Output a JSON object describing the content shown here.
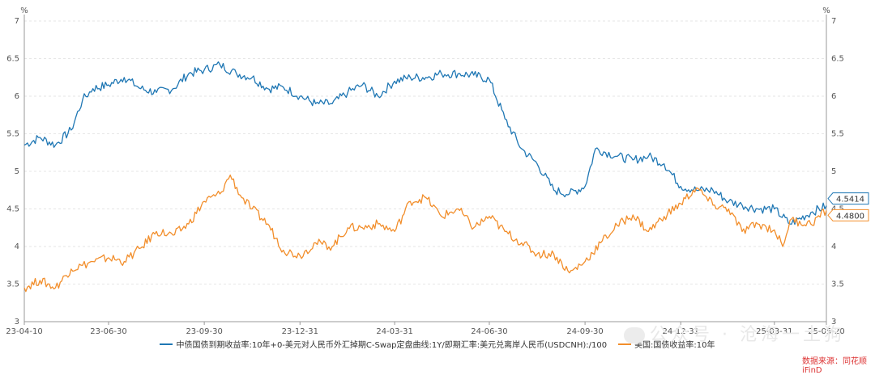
{
  "chart_data": {
    "type": "line",
    "y_unit_left": "%",
    "y_unit_right": "%",
    "ylim": [
      3,
      7
    ],
    "yticks": [
      "3",
      "3.5",
      "4",
      "4.5",
      "5",
      "5.5",
      "6",
      "6.5",
      "7"
    ],
    "xticks": [
      "23-04-10",
      "23-06-30",
      "23-09-30",
      "23-12-31",
      "24-03-31",
      "24-06-30",
      "24-09-30",
      "24-12-31",
      "25-03-31",
      "25-05-20"
    ],
    "grid": true,
    "legend_position": "bottom",
    "series": [
      {
        "name": "中债国债到期收益率:10年+0-美元对人民币外汇掉期C-Swap定盘曲线:1Y/即期汇率:美元兑离岸人民币(USDCNH):/100",
        "color": "#1f77b4",
        "last_value_label": "4.5414",
        "points": [
          [
            "23-04-10",
            5.35
          ],
          [
            "23-04-25",
            5.45
          ],
          [
            "23-05-10",
            5.35
          ],
          [
            "23-05-25",
            5.55
          ],
          [
            "23-06-05",
            5.95
          ],
          [
            "23-06-15",
            6.1
          ],
          [
            "23-06-30",
            6.15
          ],
          [
            "23-07-15",
            6.25
          ],
          [
            "23-07-31",
            6.1
          ],
          [
            "23-08-15",
            6.05
          ],
          [
            "23-08-31",
            6.1
          ],
          [
            "23-09-15",
            6.3
          ],
          [
            "23-09-30",
            6.35
          ],
          [
            "23-10-15",
            6.42
          ],
          [
            "23-10-31",
            6.3
          ],
          [
            "23-11-15",
            6.25
          ],
          [
            "23-11-30",
            6.1
          ],
          [
            "23-12-15",
            6.12
          ],
          [
            "23-12-31",
            6.0
          ],
          [
            "24-01-15",
            5.9
          ],
          [
            "24-01-31",
            5.9
          ],
          [
            "24-02-15",
            6.05
          ],
          [
            "24-02-29",
            6.15
          ],
          [
            "24-03-15",
            6.0
          ],
          [
            "24-03-31",
            6.2
          ],
          [
            "24-04-15",
            6.25
          ],
          [
            "24-04-30",
            6.25
          ],
          [
            "24-05-15",
            6.3
          ],
          [
            "24-05-31",
            6.3
          ],
          [
            "24-06-15",
            6.28
          ],
          [
            "24-06-30",
            6.22
          ],
          [
            "24-07-15",
            5.7
          ],
          [
            "24-07-31",
            5.3
          ],
          [
            "24-08-15",
            5.1
          ],
          [
            "24-08-31",
            4.75
          ],
          [
            "24-09-15",
            4.7
          ],
          [
            "24-09-30",
            4.8
          ],
          [
            "24-10-10",
            5.3
          ],
          [
            "24-10-31",
            5.2
          ],
          [
            "24-11-15",
            5.15
          ],
          [
            "24-11-30",
            5.2
          ],
          [
            "24-12-15",
            5.1
          ],
          [
            "24-12-31",
            4.8
          ],
          [
            "25-01-15",
            4.75
          ],
          [
            "25-01-31",
            4.75
          ],
          [
            "25-02-15",
            4.6
          ],
          [
            "25-02-28",
            4.55
          ],
          [
            "25-03-15",
            4.5
          ],
          [
            "25-03-31",
            4.5
          ],
          [
            "25-04-15",
            4.3
          ],
          [
            "25-05-05",
            4.45
          ],
          [
            "25-05-20",
            4.5414
          ]
        ]
      },
      {
        "name": "美国:国债收益率:10年",
        "color": "#f28e2b",
        "last_value_label": "4.4800",
        "points": [
          [
            "23-04-10",
            3.45
          ],
          [
            "23-04-25",
            3.55
          ],
          [
            "23-05-10",
            3.45
          ],
          [
            "23-05-25",
            3.7
          ],
          [
            "23-06-05",
            3.75
          ],
          [
            "23-06-15",
            3.8
          ],
          [
            "23-06-30",
            3.85
          ],
          [
            "23-07-15",
            3.8
          ],
          [
            "23-07-31",
            3.98
          ],
          [
            "23-08-15",
            4.2
          ],
          [
            "23-08-31",
            4.15
          ],
          [
            "23-09-15",
            4.3
          ],
          [
            "23-09-30",
            4.6
          ],
          [
            "23-10-15",
            4.7
          ],
          [
            "23-10-25",
            4.95
          ],
          [
            "23-11-05",
            4.65
          ],
          [
            "23-11-15",
            4.5
          ],
          [
            "23-11-30",
            4.3
          ],
          [
            "23-12-15",
            3.95
          ],
          [
            "23-12-31",
            3.88
          ],
          [
            "24-01-15",
            4.05
          ],
          [
            "24-01-31",
            4.0
          ],
          [
            "24-02-15",
            4.25
          ],
          [
            "24-02-29",
            4.25
          ],
          [
            "24-03-15",
            4.3
          ],
          [
            "24-03-31",
            4.2
          ],
          [
            "24-04-15",
            4.6
          ],
          [
            "24-04-30",
            4.65
          ],
          [
            "24-05-15",
            4.4
          ],
          [
            "24-05-31",
            4.5
          ],
          [
            "24-06-15",
            4.25
          ],
          [
            "24-06-30",
            4.4
          ],
          [
            "24-07-15",
            4.2
          ],
          [
            "24-07-31",
            4.05
          ],
          [
            "24-08-15",
            3.9
          ],
          [
            "24-08-31",
            3.9
          ],
          [
            "24-09-15",
            3.65
          ],
          [
            "24-09-30",
            3.8
          ],
          [
            "24-10-15",
            4.05
          ],
          [
            "24-10-31",
            4.28
          ],
          [
            "24-11-15",
            4.42
          ],
          [
            "24-11-30",
            4.2
          ],
          [
            "24-12-15",
            4.4
          ],
          [
            "24-12-31",
            4.57
          ],
          [
            "25-01-15",
            4.78
          ],
          [
            "25-01-31",
            4.55
          ],
          [
            "25-02-15",
            4.5
          ],
          [
            "25-02-28",
            4.2
          ],
          [
            "25-03-15",
            4.3
          ],
          [
            "25-03-31",
            4.22
          ],
          [
            "25-04-08",
            4.0
          ],
          [
            "25-04-15",
            4.35
          ],
          [
            "25-05-05",
            4.3
          ],
          [
            "25-05-20",
            4.48
          ]
        ]
      }
    ]
  },
  "watermark": {
    "text": "公众号 · 沧海一土狗"
  },
  "source_text": "数据来源：同花顺iFinD"
}
